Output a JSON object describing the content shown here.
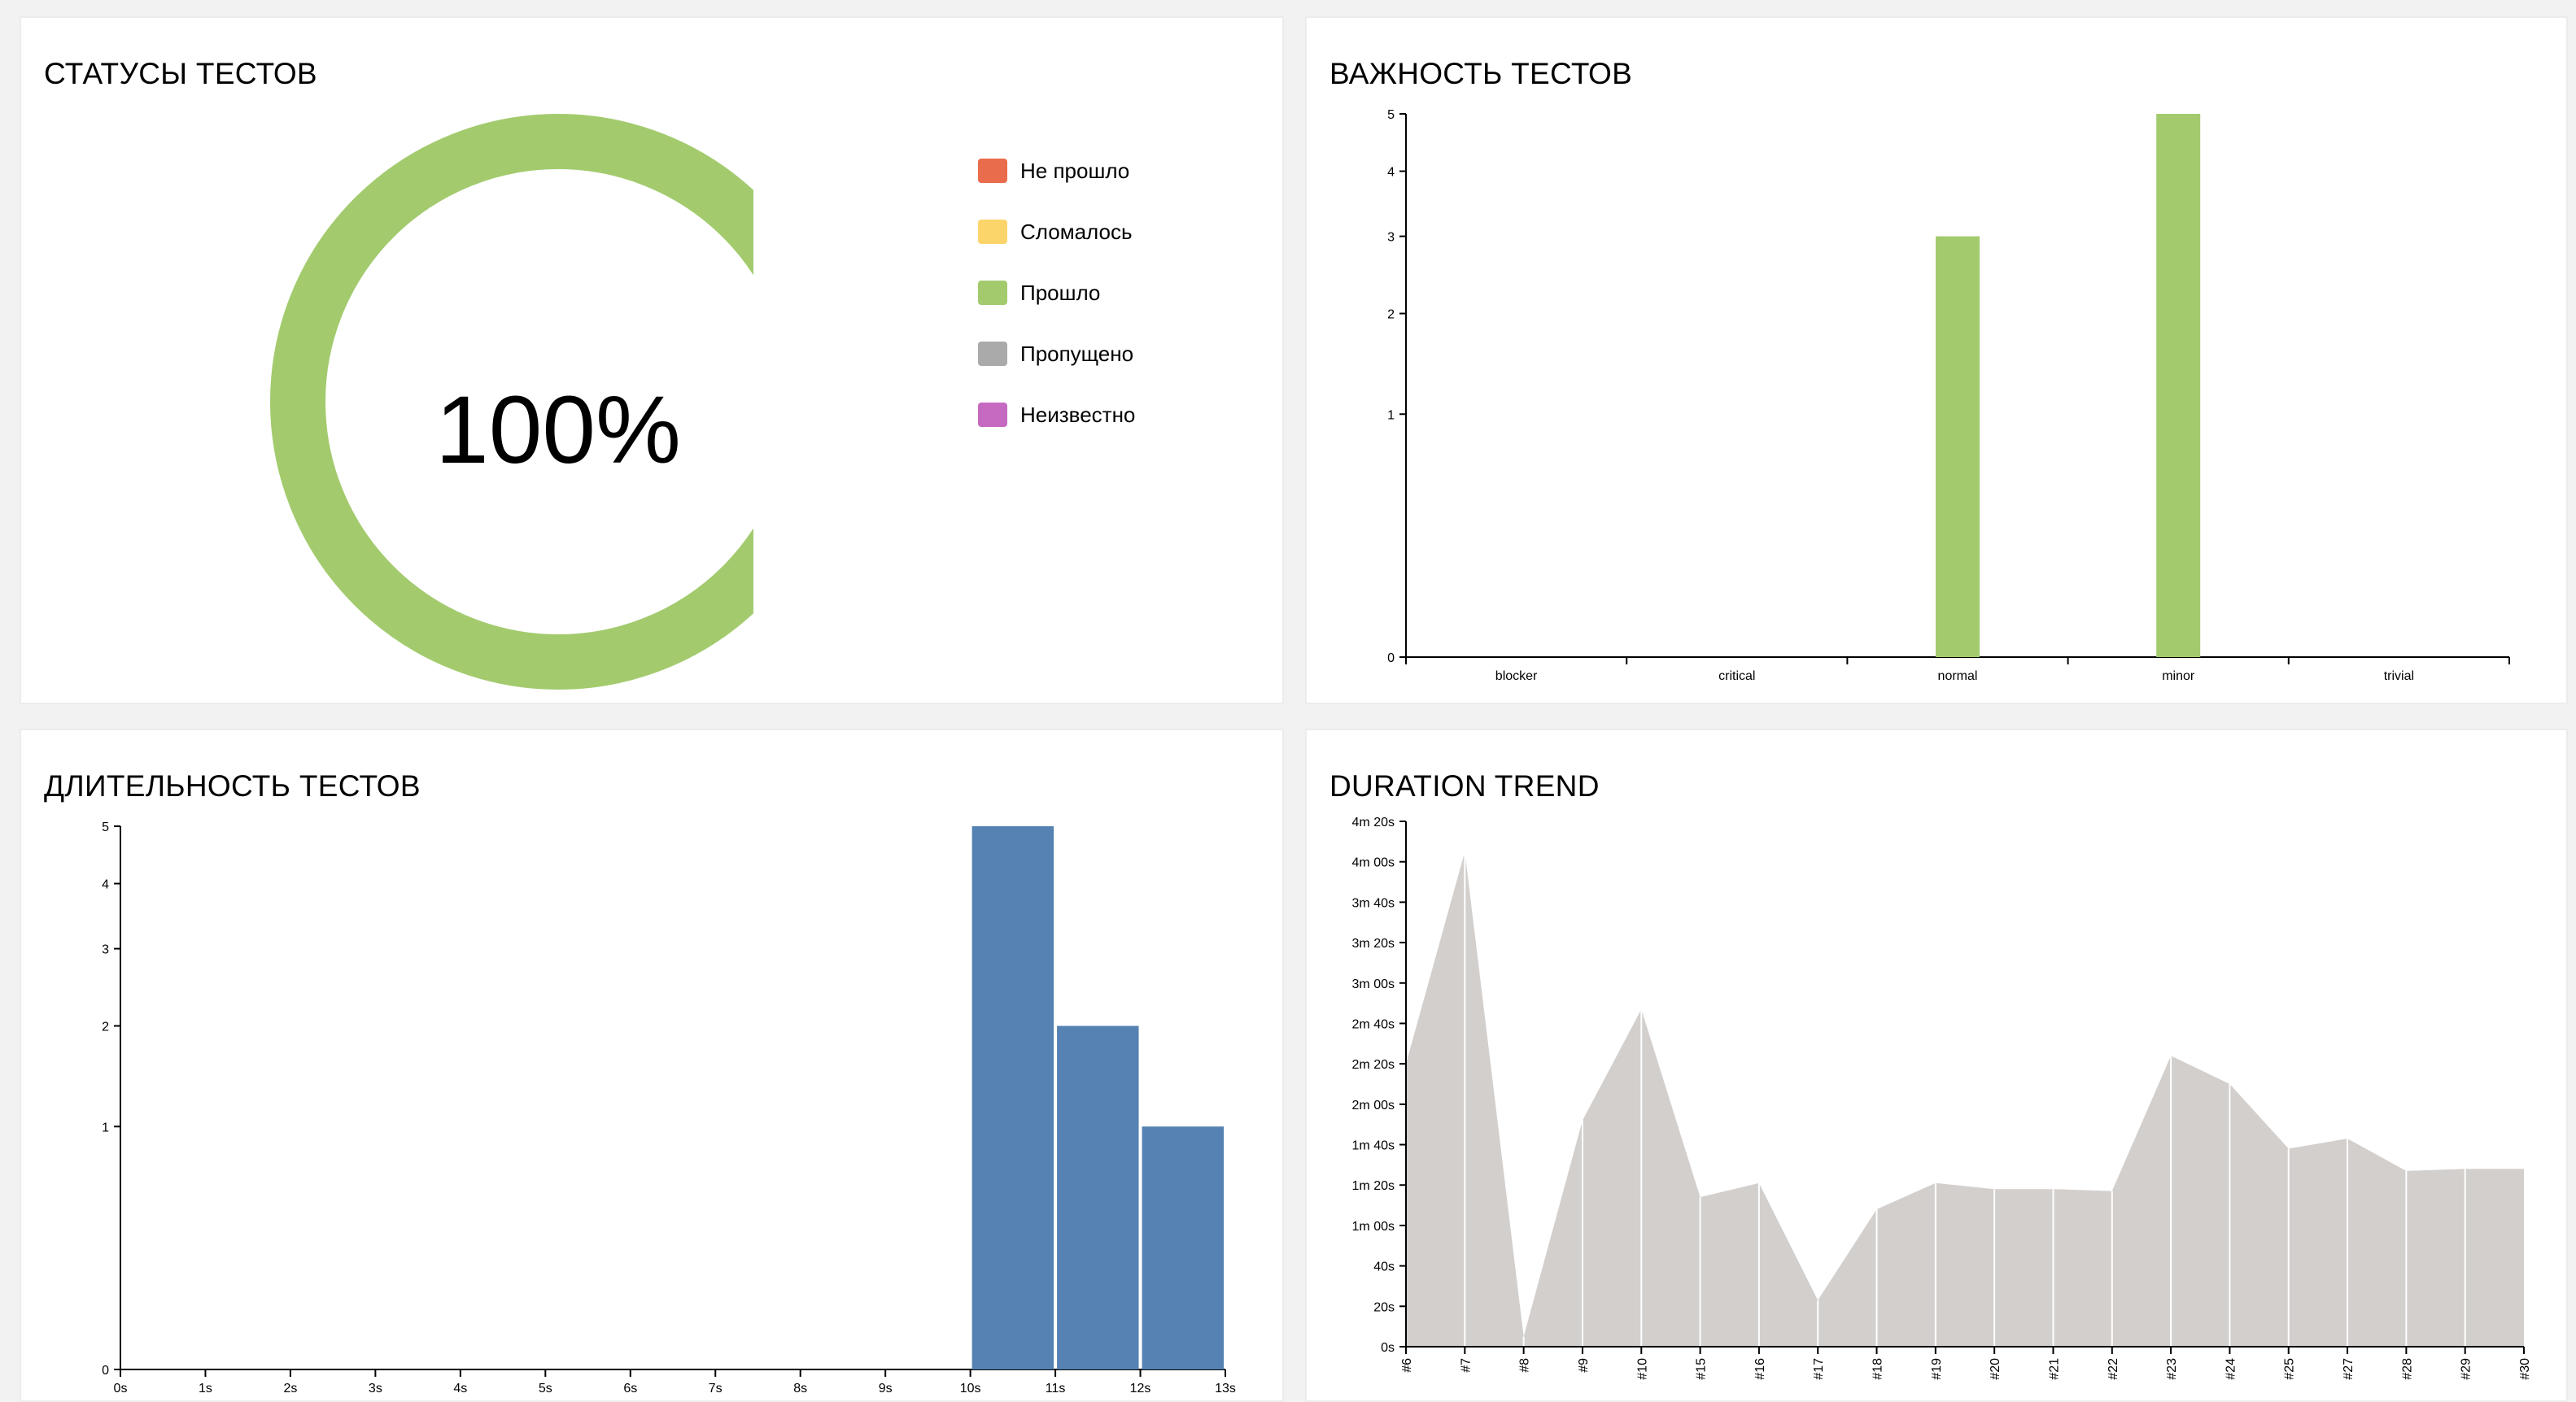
{
  "panels": {
    "statuses": {
      "title": "СТАТУСЫ ТЕСТОВ"
    },
    "severity": {
      "title": "ВАЖНОСТЬ ТЕСТОВ"
    },
    "duration": {
      "title": "ДЛИТЕЛЬНОСТЬ ТЕСТОВ"
    },
    "trend": {
      "title": "DURATION TREND"
    }
  },
  "colors": {
    "failed": "#e96c4c",
    "broken": "#fbd56a",
    "passed": "#a3cb6e",
    "skipped": "#aaaaaa",
    "unknown": "#c66ac1",
    "histogram": "#5582b2",
    "trend_fill": "#d3cfcd",
    "axis": "#000000"
  },
  "chart_data": [
    {
      "type": "pie",
      "variant": "donut",
      "center_label": "100%",
      "legend": [
        {
          "label": "Не прошло",
          "color_key": "failed"
        },
        {
          "label": "Сломалось",
          "color_key": "broken"
        },
        {
          "label": "Прошло",
          "color_key": "passed"
        },
        {
          "label": "Пропущено",
          "color_key": "skipped"
        },
        {
          "label": "Неизвестно",
          "color_key": "unknown"
        }
      ],
      "slices": [
        {
          "label": "Не прошло",
          "value": 0
        },
        {
          "label": "Сломалось",
          "value": 0
        },
        {
          "label": "Прошло",
          "value": 8
        },
        {
          "label": "Пропущено",
          "value": 0
        },
        {
          "label": "Неизвестно",
          "value": 0
        }
      ]
    },
    {
      "type": "bar",
      "categories": [
        "blocker",
        "critical",
        "normal",
        "minor",
        "trivial"
      ],
      "values": [
        0,
        0,
        3,
        5,
        0
      ],
      "yscale": "sqrt",
      "yticks": [
        0,
        1,
        2,
        3,
        4,
        5
      ],
      "ylim": [
        0,
        5
      ]
    },
    {
      "type": "bar",
      "variant": "histogram",
      "xticks": [
        "0s",
        "1s",
        "2s",
        "3s",
        "4s",
        "5s",
        "6s",
        "7s",
        "8s",
        "9s",
        "10s",
        "11s",
        "12s",
        "13s"
      ],
      "bins": [
        {
          "from": 10,
          "to": 11,
          "value": 5
        },
        {
          "from": 11,
          "to": 12,
          "value": 2
        },
        {
          "from": 12,
          "to": 13,
          "value": 1
        }
      ],
      "yscale": "sqrt",
      "yticks": [
        0,
        1,
        2,
        3,
        4,
        5
      ],
      "ylim": [
        0,
        5
      ]
    },
    {
      "type": "area",
      "categories": [
        "#6",
        "#7",
        "#8",
        "#9",
        "#10",
        "#15",
        "#16",
        "#17",
        "#18",
        "#19",
        "#20",
        "#21",
        "#22",
        "#23",
        "#24",
        "#25",
        "#27",
        "#28",
        "#29",
        "#30"
      ],
      "values_seconds": [
        140,
        245,
        5,
        112,
        167,
        74,
        81,
        23,
        68,
        81,
        78,
        78,
        77,
        144,
        130,
        98,
        103,
        87,
        88,
        88
      ],
      "ylim": [
        0,
        260
      ],
      "yticks": [
        "0s",
        "20s",
        "40s",
        "1m 00s",
        "1m 20s",
        "1m 40s",
        "2m 00s",
        "2m 20s",
        "2m 40s",
        "3m 00s",
        "3m 20s",
        "3m 40s",
        "4m 00s",
        "4m 20s"
      ]
    }
  ]
}
